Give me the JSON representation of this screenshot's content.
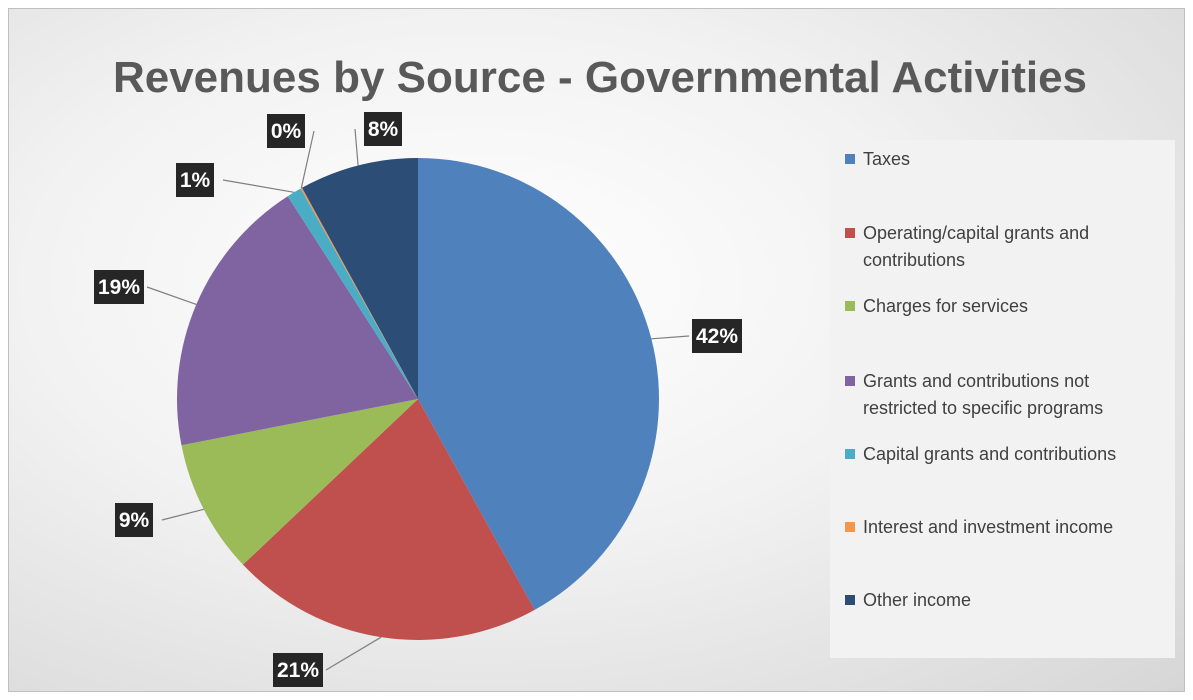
{
  "chart_data": {
    "type": "pie",
    "title": "Revenues by Source - Governmental Activities",
    "categories": [
      "Taxes",
      "Operating/capital grants and contributions",
      "Charges for services",
      "Grants and contributions not restricted to specific programs",
      "Capital grants and contributions",
      "Interest and investment income",
      "Other income"
    ],
    "legend_lines": [
      [
        "Taxes"
      ],
      [
        "Operating/capital grants and",
        "contributions"
      ],
      [
        "Charges for services"
      ],
      [
        "Grants and contributions not",
        "restricted to specific programs"
      ],
      [
        "Capital grants and contributions"
      ],
      [
        "Interest and investment income"
      ],
      [
        "Other income"
      ]
    ],
    "values": [
      42,
      21,
      9,
      19,
      1,
      0.1,
      8
    ],
    "data_labels": [
      "42%",
      "21%",
      "9%",
      "19%",
      "1%",
      "0%",
      "8%"
    ],
    "colors": [
      "#4f81bd",
      "#c0504d",
      "#9bbb59",
      "#8064a2",
      "#4bacc6",
      "#f79646",
      "#2c4d75"
    ],
    "legend_position": "right"
  }
}
